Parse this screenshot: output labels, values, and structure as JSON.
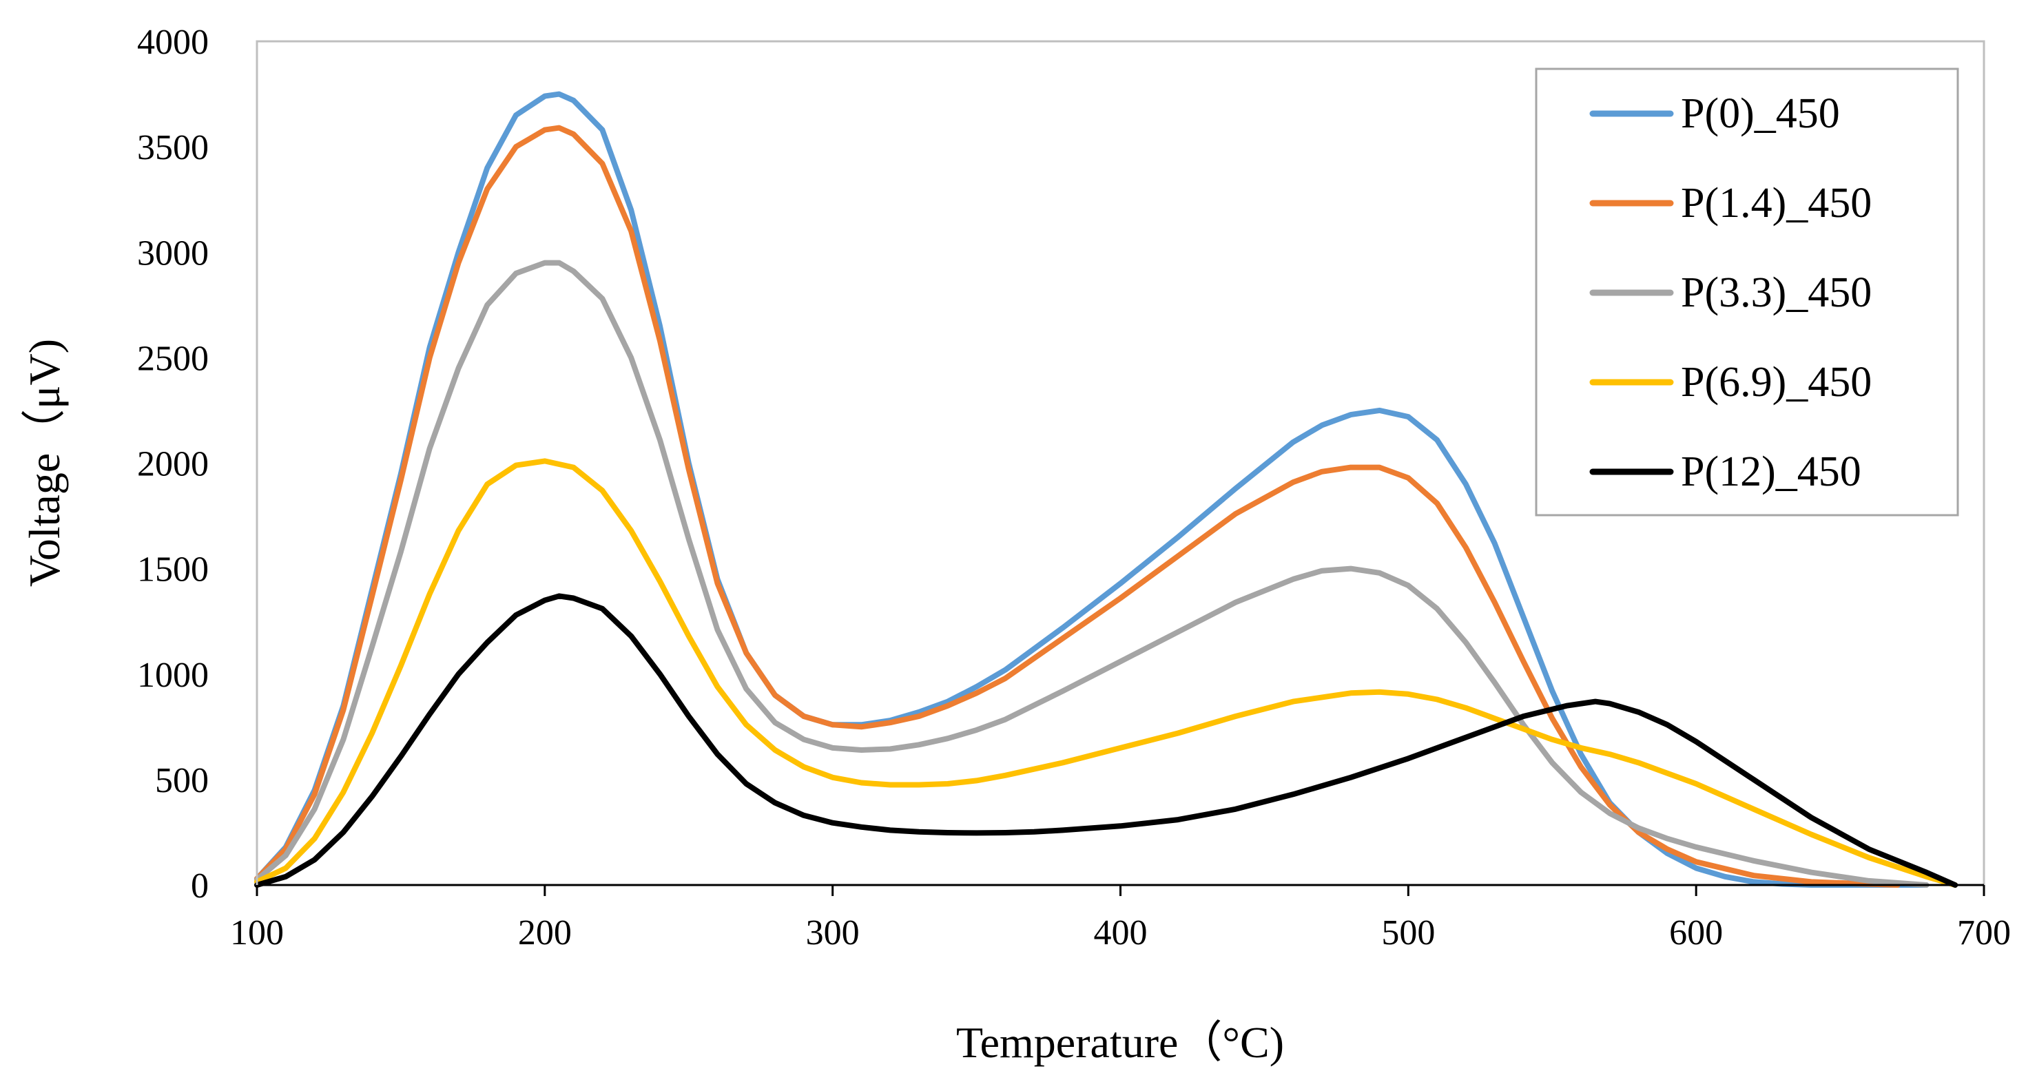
{
  "chart_data": {
    "type": "line",
    "title": "",
    "xlabel": "Temperature（°C)",
    "ylabel": "Voltage（μV)",
    "xlim": [
      100,
      700
    ],
    "ylim": [
      0,
      4000
    ],
    "x_ticks": [
      100,
      200,
      300,
      400,
      500,
      600,
      700
    ],
    "y_ticks": [
      0,
      500,
      1000,
      1500,
      2000,
      2500,
      3000,
      3500,
      4000
    ],
    "grid": false,
    "legend_position": "top-right",
    "series": [
      {
        "name": "P(0)_450",
        "color": "#5B9BD5",
        "x": [
          100,
          110,
          120,
          130,
          140,
          150,
          160,
          170,
          180,
          190,
          200,
          205,
          210,
          220,
          230,
          240,
          250,
          260,
          270,
          280,
          290,
          300,
          310,
          320,
          330,
          340,
          350,
          360,
          380,
          400,
          420,
          440,
          460,
          470,
          480,
          490,
          500,
          510,
          520,
          530,
          540,
          550,
          560,
          570,
          580,
          590,
          600,
          610,
          620,
          630,
          640,
          660,
          680
        ],
        "y": [
          30,
          180,
          450,
          850,
          1400,
          1950,
          2550,
          3000,
          3400,
          3650,
          3740,
          3750,
          3720,
          3580,
          3200,
          2650,
          2000,
          1450,
          1100,
          900,
          800,
          760,
          760,
          780,
          820,
          870,
          940,
          1020,
          1220,
          1430,
          1650,
          1880,
          2100,
          2180,
          2230,
          2250,
          2220,
          2110,
          1900,
          1620,
          1270,
          920,
          620,
          390,
          250,
          150,
          80,
          40,
          15,
          5,
          0,
          0,
          0
        ]
      },
      {
        "name": "P(1.4)_450",
        "color": "#ED7D31",
        "x": [
          100,
          110,
          120,
          130,
          140,
          150,
          160,
          170,
          180,
          190,
          200,
          205,
          210,
          220,
          230,
          240,
          250,
          260,
          270,
          280,
          290,
          300,
          310,
          320,
          330,
          340,
          350,
          360,
          380,
          400,
          420,
          440,
          460,
          470,
          480,
          490,
          500,
          510,
          520,
          530,
          540,
          550,
          560,
          570,
          580,
          590,
          600,
          620,
          640,
          660,
          670
        ],
        "y": [
          30,
          170,
          430,
          830,
          1370,
          1920,
          2500,
          2950,
          3300,
          3500,
          3580,
          3590,
          3560,
          3420,
          3100,
          2580,
          1970,
          1430,
          1100,
          900,
          800,
          760,
          750,
          770,
          800,
          850,
          910,
          980,
          1170,
          1360,
          1560,
          1760,
          1910,
          1960,
          1980,
          1980,
          1930,
          1810,
          1600,
          1340,
          1060,
          790,
          560,
          380,
          250,
          170,
          110,
          45,
          15,
          5,
          0
        ]
      },
      {
        "name": "P(3.3)_450",
        "color": "#A5A5A5",
        "x": [
          100,
          110,
          120,
          130,
          140,
          150,
          160,
          170,
          180,
          190,
          200,
          205,
          210,
          220,
          230,
          240,
          250,
          260,
          270,
          280,
          290,
          300,
          310,
          320,
          330,
          340,
          350,
          360,
          380,
          400,
          420,
          440,
          460,
          470,
          480,
          490,
          500,
          510,
          520,
          530,
          540,
          550,
          560,
          570,
          580,
          590,
          600,
          620,
          640,
          660,
          680
        ],
        "y": [
          25,
          140,
          360,
          690,
          1130,
          1580,
          2070,
          2450,
          2750,
          2900,
          2950,
          2950,
          2910,
          2780,
          2500,
          2110,
          1640,
          1210,
          930,
          770,
          690,
          650,
          640,
          645,
          665,
          695,
          735,
          785,
          920,
          1060,
          1200,
          1340,
          1450,
          1490,
          1500,
          1480,
          1420,
          1310,
          1150,
          960,
          760,
          580,
          440,
          340,
          270,
          220,
          180,
          115,
          60,
          20,
          0
        ]
      },
      {
        "name": "P(6.9)_450",
        "color": "#FFC000",
        "x": [
          100,
          110,
          120,
          130,
          140,
          150,
          160,
          170,
          180,
          190,
          200,
          210,
          220,
          230,
          240,
          250,
          260,
          270,
          280,
          290,
          300,
          310,
          320,
          330,
          340,
          350,
          360,
          380,
          400,
          420,
          440,
          460,
          480,
          490,
          500,
          510,
          520,
          530,
          540,
          550,
          560,
          570,
          580,
          600,
          620,
          640,
          660,
          680,
          690
        ],
        "y": [
          15,
          80,
          220,
          440,
          720,
          1040,
          1380,
          1680,
          1900,
          1990,
          2010,
          1980,
          1870,
          1680,
          1440,
          1180,
          940,
          760,
          640,
          560,
          510,
          485,
          475,
          475,
          480,
          495,
          520,
          580,
          650,
          720,
          800,
          870,
          910,
          915,
          905,
          880,
          840,
          790,
          740,
          690,
          650,
          620,
          580,
          480,
          360,
          240,
          130,
          40,
          0
        ]
      },
      {
        "name": "P(12)_450",
        "color": "#000000",
        "x": [
          100,
          110,
          120,
          130,
          140,
          150,
          160,
          170,
          180,
          190,
          200,
          205,
          210,
          220,
          230,
          240,
          250,
          260,
          270,
          280,
          290,
          300,
          310,
          320,
          330,
          340,
          350,
          360,
          370,
          380,
          400,
          420,
          440,
          460,
          480,
          500,
          520,
          540,
          555,
          565,
          570,
          580,
          590,
          600,
          620,
          640,
          660,
          680,
          690
        ],
        "y": [
          0,
          40,
          120,
          250,
          420,
          610,
          810,
          1000,
          1150,
          1280,
          1350,
          1370,
          1360,
          1310,
          1180,
          1000,
          800,
          620,
          480,
          390,
          330,
          295,
          275,
          260,
          252,
          248,
          247,
          248,
          252,
          260,
          280,
          310,
          360,
          430,
          510,
          600,
          700,
          800,
          850,
          870,
          860,
          820,
          760,
          680,
          500,
          320,
          170,
          60,
          0
        ]
      }
    ]
  }
}
